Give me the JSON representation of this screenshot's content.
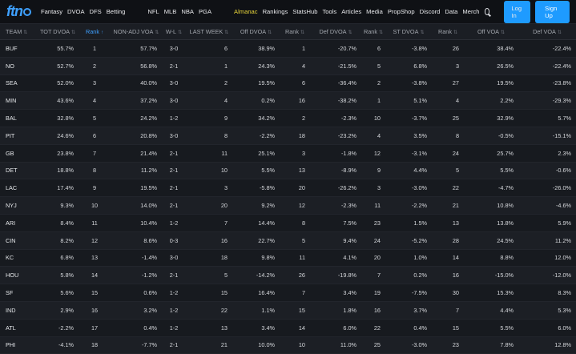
{
  "header": {
    "logo": "ftn",
    "nav_left": [
      "Fantasy",
      "DVOA",
      "DFS",
      "Betting"
    ],
    "nav_leagues": [
      "NFL",
      "MLB",
      "NBA",
      "PGA"
    ],
    "nav_right": [
      "Almanac",
      "Rankings",
      "StatsHub",
      "Tools",
      "Articles",
      "Media",
      "PropShop",
      "Discord",
      "Data",
      "Merch"
    ],
    "active_nav": "Almanac",
    "login_label": "Log In",
    "signup_label": "Sign Up",
    "accent": "#1e9bff"
  },
  "table": {
    "columns": [
      "TEAM",
      "TOT DVOA",
      "Rank",
      "NON-ADJ VOA",
      "W-L",
      "LAST WEEK",
      "Off DVOA",
      "Rank",
      "Def DVOA",
      "Rank",
      "ST DVOA",
      "Rank",
      "Off VOA",
      "Def VOA"
    ],
    "sorted_column": 2,
    "rows": [
      [
        "BUF",
        "55.7%",
        "1",
        "57.7%",
        "3-0",
        "6",
        "38.9%",
        "1",
        "-20.7%",
        "6",
        "-3.8%",
        "26",
        "38.4%",
        "-22.4%"
      ],
      [
        "NO",
        "52.7%",
        "2",
        "56.8%",
        "2-1",
        "1",
        "24.3%",
        "4",
        "-21.5%",
        "5",
        "6.8%",
        "3",
        "26.5%",
        "-22.4%"
      ],
      [
        "SEA",
        "52.0%",
        "3",
        "40.0%",
        "3-0",
        "2",
        "19.5%",
        "6",
        "-36.4%",
        "2",
        "-3.8%",
        "27",
        "19.5%",
        "-23.8%"
      ],
      [
        "MIN",
        "43.6%",
        "4",
        "37.2%",
        "3-0",
        "4",
        "0.2%",
        "16",
        "-38.2%",
        "1",
        "5.1%",
        "4",
        "2.2%",
        "-29.3%"
      ],
      [
        "BAL",
        "32.8%",
        "5",
        "24.2%",
        "1-2",
        "9",
        "34.2%",
        "2",
        "-2.3%",
        "10",
        "-3.7%",
        "25",
        "32.9%",
        "5.7%"
      ],
      [
        "PIT",
        "24.6%",
        "6",
        "20.8%",
        "3-0",
        "8",
        "-2.2%",
        "18",
        "-23.2%",
        "4",
        "3.5%",
        "8",
        "-0.5%",
        "-15.1%"
      ],
      [
        "GB",
        "23.8%",
        "7",
        "21.4%",
        "2-1",
        "11",
        "25.1%",
        "3",
        "-1.8%",
        "12",
        "-3.1%",
        "24",
        "25.7%",
        "2.3%"
      ],
      [
        "DET",
        "18.8%",
        "8",
        "11.2%",
        "2-1",
        "10",
        "5.5%",
        "13",
        "-8.9%",
        "9",
        "4.4%",
        "5",
        "5.5%",
        "-0.6%"
      ],
      [
        "LAC",
        "17.4%",
        "9",
        "19.5%",
        "2-1",
        "3",
        "-5.8%",
        "20",
        "-26.2%",
        "3",
        "-3.0%",
        "22",
        "-4.7%",
        "-26.0%"
      ],
      [
        "NYJ",
        "9.3%",
        "10",
        "14.0%",
        "2-1",
        "20",
        "9.2%",
        "12",
        "-2.3%",
        "11",
        "-2.2%",
        "21",
        "10.8%",
        "-4.6%"
      ],
      [
        "ARI",
        "8.4%",
        "11",
        "10.4%",
        "1-2",
        "7",
        "14.4%",
        "8",
        "7.5%",
        "23",
        "1.5%",
        "13",
        "13.8%",
        "5.9%"
      ],
      [
        "CIN",
        "8.2%",
        "12",
        "8.6%",
        "0-3",
        "16",
        "22.7%",
        "5",
        "9.4%",
        "24",
        "-5.2%",
        "28",
        "24.5%",
        "11.2%"
      ],
      [
        "KC",
        "6.8%",
        "13",
        "-1.4%",
        "3-0",
        "18",
        "9.8%",
        "11",
        "4.1%",
        "20",
        "1.0%",
        "14",
        "8.8%",
        "12.0%"
      ],
      [
        "HOU",
        "5.8%",
        "14",
        "-1.2%",
        "2-1",
        "5",
        "-14.2%",
        "26",
        "-19.8%",
        "7",
        "0.2%",
        "16",
        "-15.0%",
        "-12.0%"
      ],
      [
        "SF",
        "5.6%",
        "15",
        "0.6%",
        "1-2",
        "15",
        "16.4%",
        "7",
        "3.4%",
        "19",
        "-7.5%",
        "30",
        "15.3%",
        "8.3%"
      ],
      [
        "IND",
        "2.9%",
        "16",
        "3.2%",
        "1-2",
        "22",
        "1.1%",
        "15",
        "1.8%",
        "16",
        "3.7%",
        "7",
        "4.4%",
        "5.3%"
      ],
      [
        "ATL",
        "-2.2%",
        "17",
        "0.4%",
        "1-2",
        "13",
        "3.4%",
        "14",
        "6.0%",
        "22",
        "0.4%",
        "15",
        "5.5%",
        "6.0%"
      ],
      [
        "PHI",
        "-4.1%",
        "18",
        "-7.7%",
        "2-1",
        "21",
        "10.0%",
        "10",
        "11.0%",
        "25",
        "-3.0%",
        "23",
        "7.8%",
        "12.8%"
      ]
    ]
  }
}
